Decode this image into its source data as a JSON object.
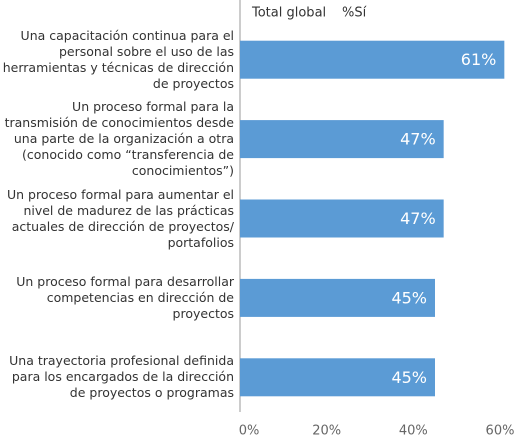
{
  "chart_data": {
    "type": "bar",
    "orientation": "horizontal",
    "title": "Total global",
    "value_header": "%Sí",
    "categories": [
      "Una capacitación continua para el personal sobre el uso de las herramientas y técnicas de dirección de proyectos",
      "Un proceso formal para la transmisión de conocimientos desde una parte de la organización a otra (conocido como “transferencia de conocimientos”)",
      "Un proceso formal para aumentar el nivel de madurez de las prácticas actuales de dirección de proyectos/ portafolios",
      "Un proceso formal para desarrollar competencias en dirección de proyectos",
      "Una trayectoria profesional definida para los encargados de la dirección de proyectos o programas"
    ],
    "values": [
      61,
      47,
      47,
      45,
      45
    ],
    "value_labels": [
      "61%",
      "47%",
      "47%",
      "45%",
      "45%"
    ],
    "color": "#5b9bd5",
    "xlim": [
      0,
      60
    ],
    "xticks": [
      {
        "value": 0,
        "label": "0%"
      },
      {
        "value": 20,
        "label": "20%"
      },
      {
        "value": 40,
        "label": "40%"
      },
      {
        "value": 60,
        "label": "60%"
      }
    ]
  }
}
